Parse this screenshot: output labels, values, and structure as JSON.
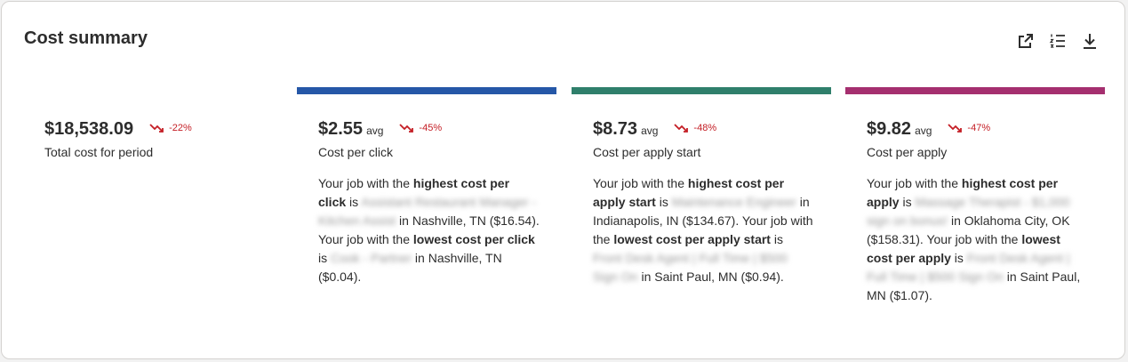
{
  "header": {
    "title": "Cost summary"
  },
  "toolbar": {
    "icons": [
      "external-link-icon",
      "numbered-list-icon",
      "download-icon"
    ]
  },
  "colors": {
    "cpc": "#2557a7",
    "cpas": "#2f7f6b",
    "cpa": "#a52f6f",
    "trend_down": "#c41d24"
  },
  "total": {
    "value": "$18,538.09",
    "change": "-22%",
    "label": "Total cost for period"
  },
  "cpc": {
    "value": "$2.55",
    "avg": "avg",
    "change": "-45%",
    "label": "Cost per click",
    "d1": "Your job with the ",
    "b1": "highest cost per click",
    "d2": " is ",
    "job1": "Assistant Restaurant Manager - Kitchen Assist",
    "d3": " in Nashville, TN ($16.54). Your job with the ",
    "b2": "lowest cost per click",
    "d4": " is ",
    "job2": "Cook - Partner",
    "d5": " in Nashville, TN ($0.04)."
  },
  "cpas": {
    "value": "$8.73",
    "avg": "avg",
    "change": "-48%",
    "label": "Cost per apply start",
    "d1": "Your job with the ",
    "b1": "highest cost per apply start",
    "d2": " is ",
    "job1": "Maintenance Engineer",
    "d3": " in Indianapolis, IN ($134.67). Your job with the ",
    "b2": "lowest cost per apply start",
    "d4": " is ",
    "job2": "Front Desk Agent | Full Time | $500 Sign On",
    "d5": " in Saint Paul, MN ($0.94)."
  },
  "cpa": {
    "value": "$9.82",
    "avg": "avg",
    "change": "-47%",
    "label": "Cost per apply",
    "d1": "Your job with the ",
    "b1": "highest cost per apply",
    "d2": " is ",
    "job1": "Massage Therapist - $1,000 sign on bonus!",
    "d3": " in Oklahoma City, OK ($158.31). Your job with the ",
    "b2": "lowest cost per apply",
    "d4": " is ",
    "job2": "Front Desk Agent | Full Time | $500 Sign On",
    "d5": " in Saint Paul, MN ($1.07)."
  }
}
